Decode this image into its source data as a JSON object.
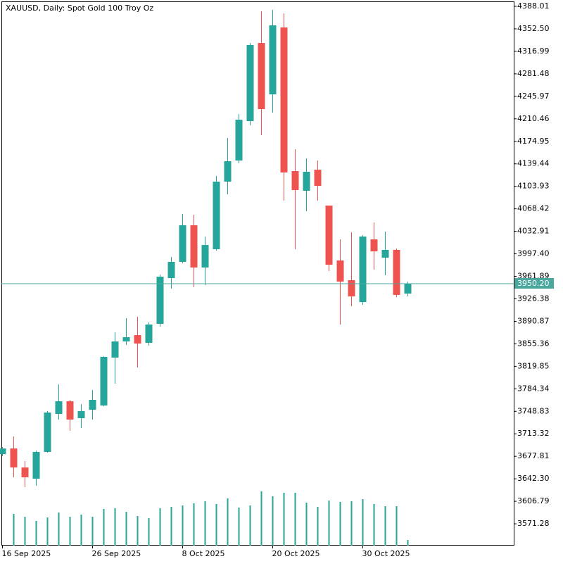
{
  "chart_data": {
    "type": "candlestick",
    "title": "XAUUSD, Daily:  Spot Gold 100 Troy Oz",
    "categories": [
      "16 Sep 2025",
      null,
      null,
      null,
      null,
      null,
      null,
      null,
      "26 Sep 2025",
      null,
      null,
      null,
      null,
      null,
      null,
      null,
      "8 Oct 2025",
      null,
      null,
      null,
      null,
      null,
      null,
      null,
      "20 Oct 2025",
      null,
      null,
      null,
      null,
      null,
      null,
      null,
      "30 Oct 2025",
      null,
      null,
      null,
      null
    ],
    "open": [
      3681.3,
      3690.2,
      3660.2,
      3642.5,
      3684.7,
      3744.7,
      3764.7,
      3738.0,
      3751.3,
      3758.0,
      3833.6,
      3859.1,
      3869.1,
      3856.9,
      3886.9,
      3959.1,
      3984.7,
      4042.5,
      3975.8,
      4004.7,
      4111.3,
      4144.7,
      4206.9,
      4330.2,
      4249.1,
      4354.7,
      4128.0,
      4096.9,
      4130.2,
      4073.6,
      3986.9,
      3955.8,
      3921.3,
      4020.2,
      3991.3,
      4003.6,
      3934.7
    ],
    "high": [
      3692.5,
      3709.1,
      3670.2,
      3686.9,
      3749.1,
      3791.3,
      3766.9,
      3760.2,
      3782.5,
      3835.8,
      3873.6,
      3895.8,
      3898.0,
      3889.1,
      3964.7,
      3992.5,
      4060.2,
      4059.1,
      4024.7,
      4120.2,
      4180.2,
      4218.0,
      4330.2,
      4380.2,
      4382.5,
      4376.9,
      4162.5,
      4148.0,
      4144.7,
      4073.6,
      4020.2,
      4031.3,
      4026.9,
      4046.9,
      4032.5,
      4005.8,
      3953.6
    ],
    "low": [
      3678.0,
      3644.7,
      3629.1,
      3631.3,
      3683.6,
      3735.8,
      3718.0,
      3722.5,
      3735.8,
      3756.9,
      3792.5,
      3853.6,
      3818.0,
      3852.5,
      3882.5,
      3942.5,
      3982.5,
      3944.7,
      3948.0,
      4002.5,
      4091.3,
      4140.2,
      4200.2,
      4184.7,
      4220.2,
      4081.3,
      4004.7,
      4064.7,
      4081.3,
      3970.2,
      3885.8,
      3914.7,
      3916.9,
      3972.5,
      3963.6,
      3929.1,
      3930.2
    ],
    "close": [
      3690.2,
      3660.2,
      3644.7,
      3684.7,
      3746.9,
      3764.7,
      3735.8,
      3749.1,
      3766.9,
      3834.7,
      3859.1,
      3865.8,
      3855.8,
      3885.8,
      3961.3,
      3984.7,
      4042.5,
      3975.8,
      4011.3,
      4111.3,
      4143.6,
      4209.1,
      4326.9,
      4225.8,
      4358.0,
      4125.8,
      4098.0,
      4126.9,
      4104.7,
      3980.2,
      3953.6,
      3930.2,
      4024.7,
      4001.3,
      4003.6,
      3932.5,
      3950.2
    ],
    "volume": [
      null,
      45000,
      41000,
      35000,
      40000,
      47000,
      41000,
      44000,
      41000,
      52000,
      53000,
      48000,
      42000,
      39000,
      53000,
      55000,
      57000,
      60000,
      63000,
      59000,
      67000,
      54000,
      57000,
      77000,
      70000,
      75000,
      75000,
      61000,
      55000,
      64000,
      62000,
      63000,
      66000,
      59000,
      56000,
      56000,
      8000
    ],
    "volume_lim": [
      0,
      200000
    ],
    "up_color": "#26a69a",
    "down_color": "#ef5350",
    "ylim": [
      3536.9,
      4395.8
    ],
    "yticks": [
      {
        "value": 4388.01,
        "label": "4388.01"
      },
      {
        "value": 4352.5,
        "label": "4352.50"
      },
      {
        "value": 4316.99,
        "label": "4316.99"
      },
      {
        "value": 4281.48,
        "label": "4281.48"
      },
      {
        "value": 4245.97,
        "label": "4245.97"
      },
      {
        "value": 4210.46,
        "label": "4210.46"
      },
      {
        "value": 4174.95,
        "label": "4174.95"
      },
      {
        "value": 4139.44,
        "label": "4139.44"
      },
      {
        "value": 4103.93,
        "label": "4103.93"
      },
      {
        "value": 4068.42,
        "label": "4068.42"
      },
      {
        "value": 4032.91,
        "label": "4032.91"
      },
      {
        "value": 3997.4,
        "label": "3997.40"
      },
      {
        "value": 3961.89,
        "label": "3961.89"
      },
      {
        "value": 3926.38,
        "label": "3926.38"
      },
      {
        "value": 3890.87,
        "label": "3890.87"
      },
      {
        "value": 3855.36,
        "label": "3855.36"
      },
      {
        "value": 3819.85,
        "label": "3819.85"
      },
      {
        "value": 3784.34,
        "label": "3784.34"
      },
      {
        "value": 3748.83,
        "label": "3748.83"
      },
      {
        "value": 3713.32,
        "label": "3713.32"
      },
      {
        "value": 3677.81,
        "label": "3677.81"
      },
      {
        "value": 3642.3,
        "label": "3642.30"
      },
      {
        "value": 3606.79,
        "label": "3606.79"
      },
      {
        "value": 3571.28,
        "label": "3571.28"
      }
    ],
    "current_price": {
      "value": 3950.2,
      "label": "3950.20"
    },
    "current_price_color": "#4ba89e"
  }
}
